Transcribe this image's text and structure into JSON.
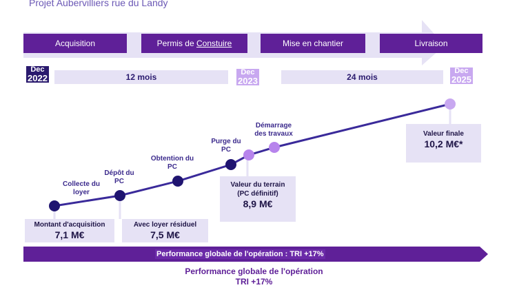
{
  "title": "Projet Aubervilliers rue du Landy",
  "phases": [
    {
      "label": "Acquisition"
    },
    {
      "label_pre": "Permis de ",
      "label_ul": "Constuire"
    },
    {
      "label": "Mise en chantier"
    },
    {
      "label": "Livraison"
    }
  ],
  "dates": [
    {
      "month": "Dec",
      "year": "2022"
    },
    {
      "month": "Dec",
      "year": "2023"
    },
    {
      "month": "Dec",
      "year": "2025"
    }
  ],
  "durations": [
    "12 mois",
    "24 mois"
  ],
  "steps": [
    {
      "label": "Collecte du\nloyer"
    },
    {
      "label": "Dépôt du\nPC"
    },
    {
      "label": "Obtention du\nPC"
    },
    {
      "label": "Purge du\nPC"
    },
    {
      "label": "Démarrage\ndes travaux"
    }
  ],
  "values": [
    {
      "label": "Montant d'acquisition",
      "value": "7,1 M€"
    },
    {
      "label": "Avec loyer résiduel",
      "value": "7,5 M€"
    },
    {
      "label": "Valeur du terrain\n(PC définitif)",
      "value": "8,9 M€"
    },
    {
      "label": "Valeur finale",
      "value": "10,2 M€*"
    }
  ],
  "performance": {
    "bar_label": "Performance globale de l'opération : TRI +17%",
    "caption_line1": "Performance globale de l'opération",
    "caption_line2": "TRI +17%"
  },
  "colors": {
    "dark_purple": "#5f2098",
    "navy": "#2a1a6e",
    "lavender": "#e6e2f5",
    "light_purple": "#c8a8f0",
    "node_dark": "#1f1470",
    "node_light": "#b784ec"
  }
}
